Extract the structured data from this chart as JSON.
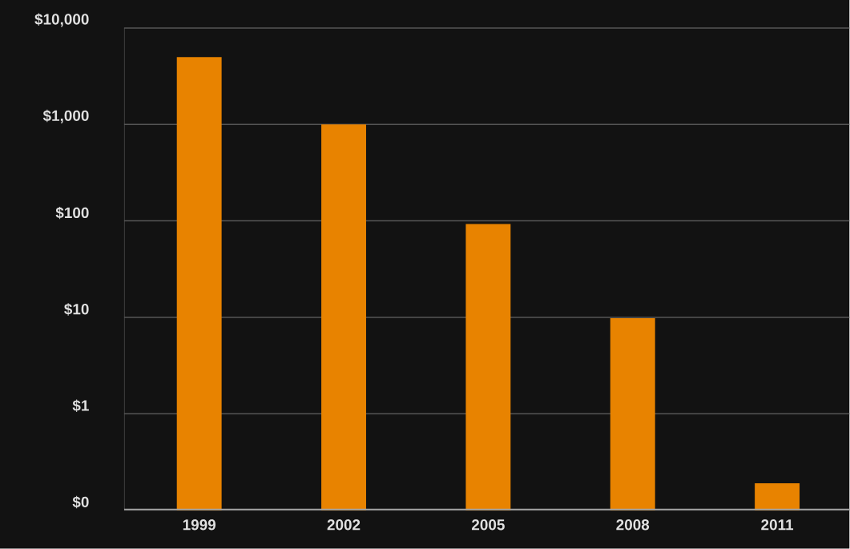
{
  "chart_data": {
    "type": "bar",
    "categories": [
      "1999",
      "2002",
      "2005",
      "2008",
      "2011"
    ],
    "values": [
      5000,
      1000,
      93,
      9.8,
      0.19
    ],
    "color": "#e88300",
    "log": "y",
    "grid": "y",
    "ylim": [
      0.1,
      10000
    ],
    "yticks": [
      {
        "value": 0.1,
        "label": "$0"
      },
      {
        "value": 1,
        "label": "$1"
      },
      {
        "value": 10,
        "label": "$10"
      },
      {
        "value": 100,
        "label": "$100"
      },
      {
        "value": 1000,
        "label": "$1,000"
      },
      {
        "value": 10000,
        "label": "$10,000"
      }
    ]
  }
}
